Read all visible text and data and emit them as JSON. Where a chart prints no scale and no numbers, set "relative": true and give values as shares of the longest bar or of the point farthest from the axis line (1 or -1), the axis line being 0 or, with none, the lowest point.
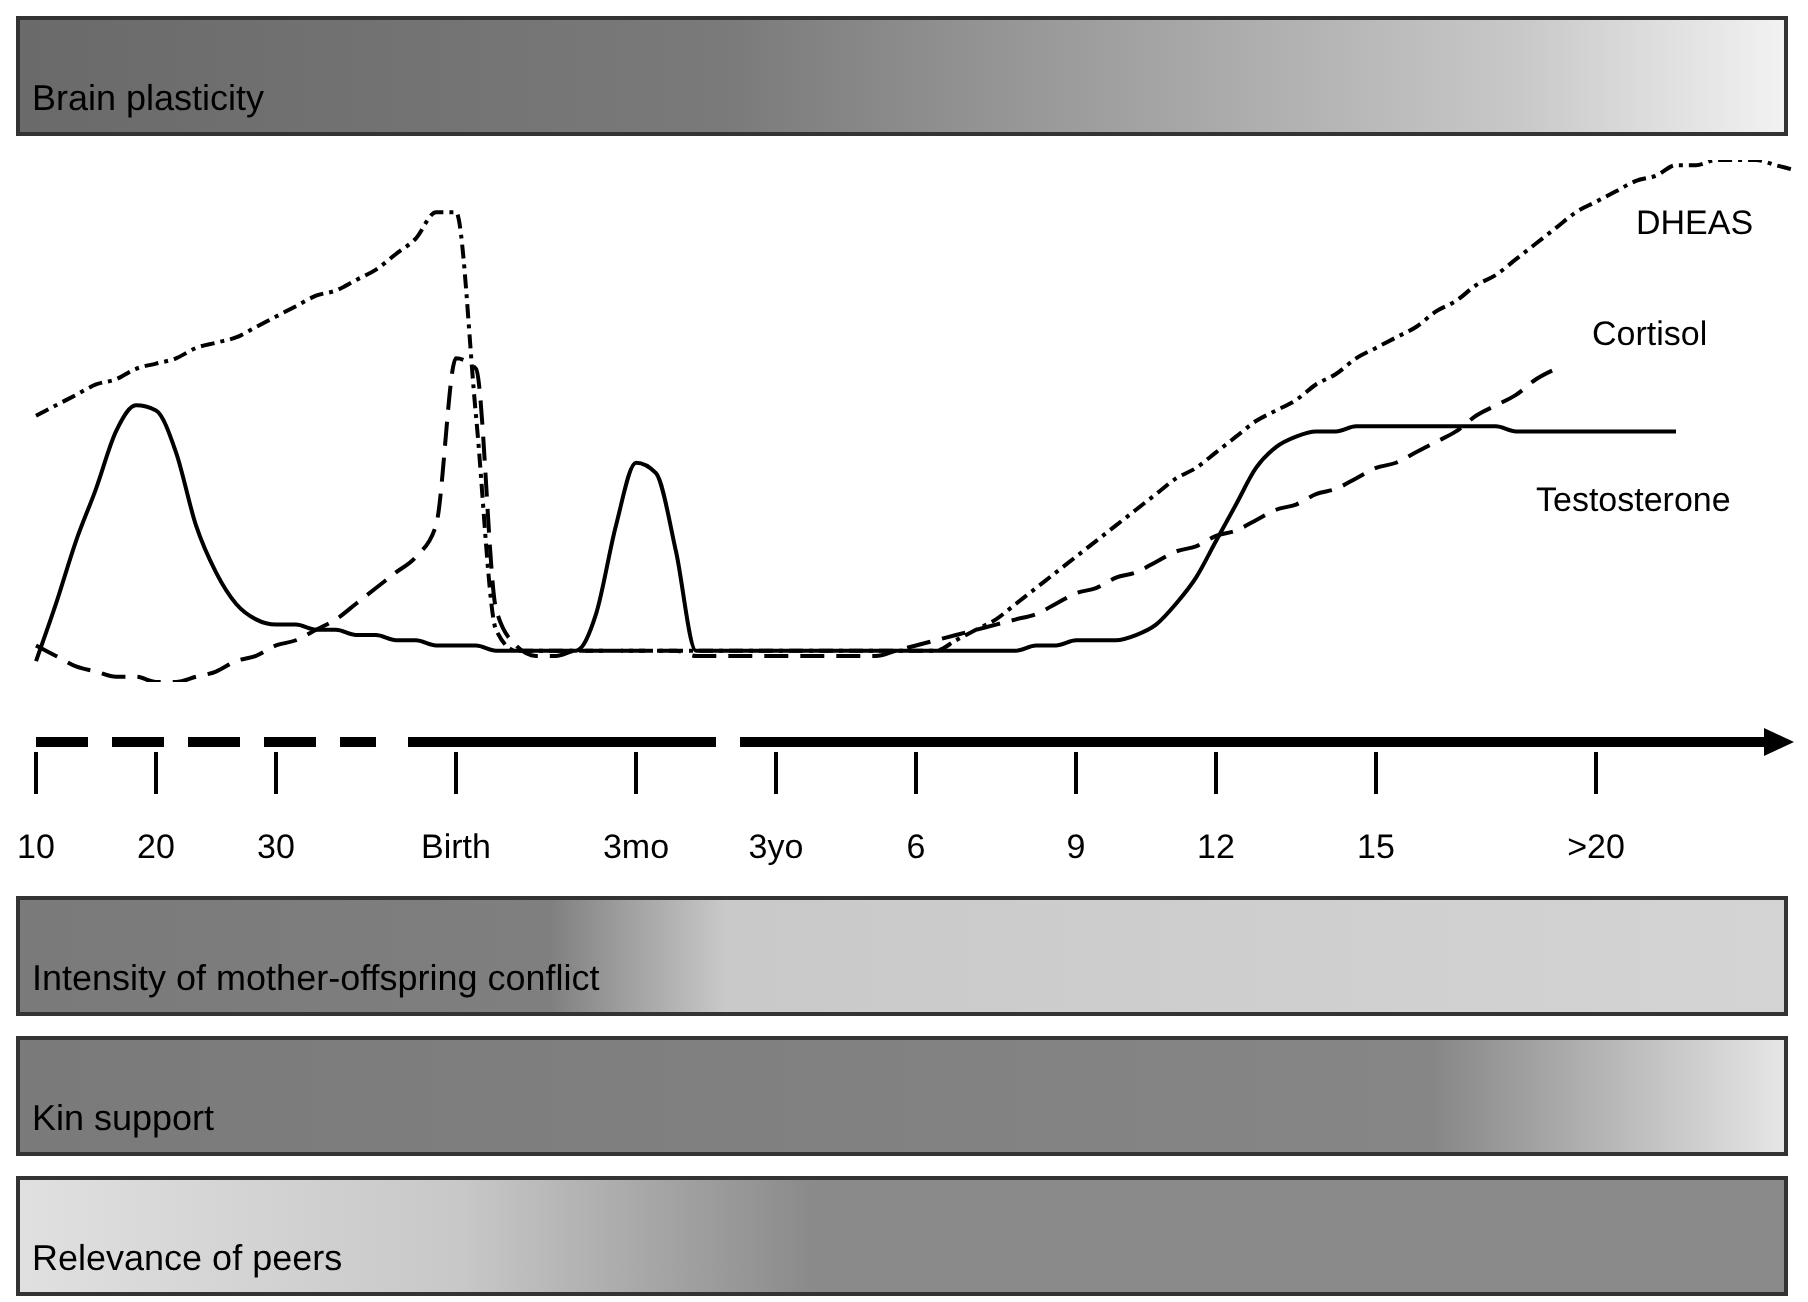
{
  "chart_data": {
    "type": "line",
    "relative": true,
    "marker": "none",
    "categories": [
      "10",
      null,
      null,
      null,
      null,
      null,
      "20",
      null,
      null,
      null,
      null,
      null,
      "30",
      null,
      null,
      null,
      null,
      null,
      null,
      null,
      null,
      "Birth",
      null,
      null,
      null,
      null,
      null,
      null,
      null,
      null,
      "3mo",
      null,
      null,
      null,
      null,
      null,
      null,
      "3yo",
      null,
      null,
      null,
      null,
      null,
      null,
      "6",
      null,
      null,
      null,
      null,
      null,
      null,
      null,
      "9",
      null,
      null,
      null,
      null,
      null,
      null,
      "12",
      null,
      null,
      null,
      null,
      null,
      null,
      null,
      "15",
      null,
      null,
      null,
      null,
      null,
      null,
      null,
      null,
      null,
      null,
      ">20",
      null,
      null,
      null,
      null,
      null,
      null,
      null,
      null,
      null,
      null
    ],
    "series": [
      {
        "name": "DHEAS",
        "color": "#000000",
        "line_style": "dotted",
        "values": [
          0.51,
          0.53,
          0.55,
          0.57,
          0.58,
          0.6,
          0.61,
          0.62,
          0.64,
          0.65,
          0.66,
          0.68,
          0.7,
          0.72,
          0.74,
          0.75,
          0.77,
          0.79,
          0.82,
          0.85,
          0.9,
          0.9,
          0.51,
          0.1,
          0.06,
          0.06,
          0.06,
          0.06,
          0.06,
          0.06,
          0.06,
          0.06,
          0.06,
          0.06,
          0.06,
          0.06,
          0.06,
          0.06,
          0.06,
          0.06,
          0.06,
          0.06,
          0.06,
          0.06,
          0.06,
          0.06,
          0.08,
          0.1,
          0.12,
          0.15,
          0.18,
          0.21,
          0.24,
          0.27,
          0.3,
          0.33,
          0.36,
          0.39,
          0.41,
          0.44,
          0.47,
          0.5,
          0.52,
          0.54,
          0.57,
          0.59,
          0.62,
          0.64,
          0.66,
          0.68,
          0.71,
          0.73,
          0.76,
          0.78,
          0.81,
          0.84,
          0.87,
          0.9,
          0.92,
          0.94,
          0.96,
          0.97,
          0.99,
          0.99,
          1,
          1,
          1,
          0.99,
          0.98
        ]
      },
      {
        "name": "Cortisol",
        "color": "#000000",
        "line_style": "dashed",
        "values": [
          0.07,
          0.05,
          0.03,
          0.02,
          0.01,
          0.01,
          0,
          0,
          0.01,
          0.02,
          0.04,
          0.05,
          0.07,
          0.08,
          0.1,
          0.12,
          0.15,
          0.18,
          0.21,
          0.24,
          0.3,
          0.62,
          0.6,
          0.14,
          0.07,
          0.05,
          0.05,
          0.06,
          0.06,
          0.06,
          0.06,
          0.06,
          0.06,
          0.05,
          0.05,
          0.05,
          0.05,
          0.05,
          0.05,
          0.05,
          0.05,
          0.05,
          0.05,
          0.06,
          0.07,
          0.08,
          0.09,
          0.1,
          0.11,
          0.12,
          0.13,
          0.15,
          0.17,
          0.18,
          0.2,
          0.21,
          0.23,
          0.25,
          0.26,
          0.28,
          0.29,
          0.31,
          0.33,
          0.34,
          0.36,
          0.37,
          0.39,
          0.41,
          0.42,
          0.44,
          0.46,
          0.48,
          0.51,
          0.53,
          0.55,
          0.58,
          0.6,
          null,
          null,
          null,
          null,
          null,
          null,
          null,
          null,
          null,
          null,
          null,
          null
        ]
      },
      {
        "name": "Testosterone",
        "color": "#000000",
        "line_style": "solid",
        "values": [
          0.04,
          0.15,
          0.27,
          0.37,
          0.48,
          0.53,
          0.52,
          0.44,
          0.3,
          0.21,
          0.15,
          0.12,
          0.11,
          0.11,
          0.1,
          0.1,
          0.09,
          0.09,
          0.08,
          0.08,
          0.07,
          0.07,
          0.07,
          0.06,
          0.06,
          0.06,
          0.06,
          0.06,
          0.13,
          0.3,
          0.42,
          0.4,
          0.25,
          0.06,
          0.06,
          0.06,
          0.06,
          0.06,
          0.06,
          0.06,
          0.06,
          0.06,
          0.06,
          0.06,
          0.06,
          0.06,
          0.06,
          0.06,
          0.06,
          0.06,
          0.07,
          0.07,
          0.08,
          0.08,
          0.08,
          0.09,
          0.11,
          0.15,
          0.2,
          0.27,
          0.34,
          0.41,
          0.45,
          0.47,
          0.48,
          0.48,
          0.49,
          0.49,
          0.49,
          0.49,
          0.49,
          0.49,
          0.49,
          0.49,
          0.48,
          0.48,
          0.48,
          0.48,
          0.48,
          0.48,
          0.48,
          0.48,
          0.48,
          null,
          null,
          null,
          null,
          null,
          null
        ]
      }
    ],
    "annotations": [
      "Brain plasticity",
      "Intensity  of mother-offspring conflict",
      "Kin support",
      "Relevance of peers"
    ]
  }
}
